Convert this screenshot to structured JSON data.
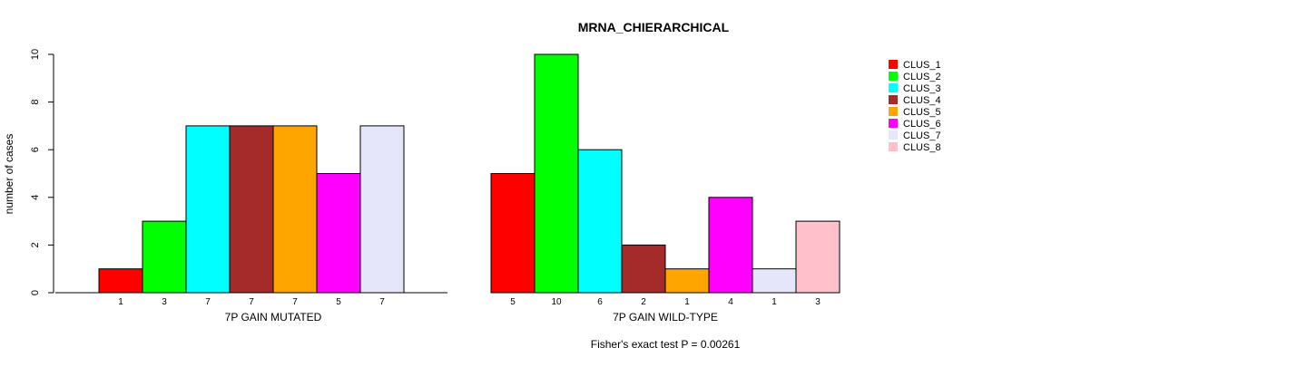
{
  "chart_data": {
    "type": "bar",
    "title": "MRNA_CHIERARCHICAL",
    "ylabel": "number of cases",
    "ylim": [
      0,
      10
    ],
    "yticks": [
      "0",
      "2",
      "4",
      "6",
      "8",
      "10"
    ],
    "footer": "Fisher's exact test P = 0.00261",
    "legend": {
      "placement": "top-right",
      "entries": [
        {
          "label": "CLUS_1",
          "color": "#FF0000"
        },
        {
          "label": "CLUS_2",
          "color": "#00FF00"
        },
        {
          "label": "CLUS_3",
          "color": "#00FFFF"
        },
        {
          "label": "CLUS_4",
          "color": "#A52A2A"
        },
        {
          "label": "CLUS_5",
          "color": "#FFA500"
        },
        {
          "label": "CLUS_6",
          "color": "#FF00FF"
        },
        {
          "label": "CLUS_7",
          "color": "#E6E6FA"
        },
        {
          "label": "CLUS_8",
          "color": "#FFC0CB"
        }
      ]
    },
    "panels": [
      {
        "xlabel": "7P GAIN MUTATED",
        "values": [
          1,
          3,
          7,
          7,
          7,
          5,
          7,
          0
        ],
        "count_labels": [
          "1",
          "3",
          "7",
          "7",
          "7",
          "5",
          "7"
        ]
      },
      {
        "xlabel": "7P GAIN WILD-TYPE",
        "values": [
          5,
          10,
          6,
          2,
          1,
          4,
          1,
          3
        ],
        "count_labels": [
          "5",
          "10",
          "6",
          "2",
          "1",
          "4",
          "1",
          "3"
        ]
      }
    ]
  }
}
